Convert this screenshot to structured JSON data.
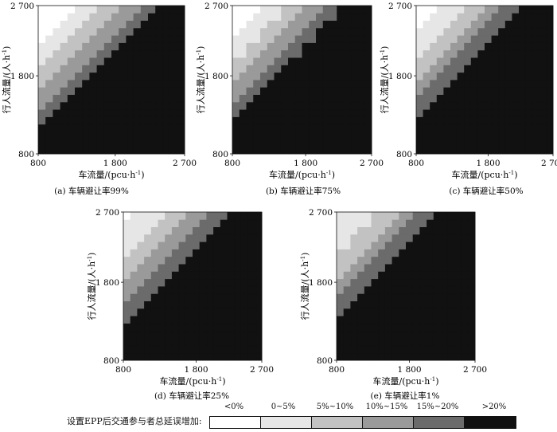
{
  "chart_data": [
    {
      "type": "heatmap",
      "caption": "(a) 车辆避让率99%",
      "xlabel": "车流量/(pcu·h",
      "xlabel_sup": "-1",
      "xlabel_tail": ")",
      "ylabel": "行人流量/(人·h",
      "ylabel_sup": "-1",
      "ylabel_tail": ")",
      "x_range": [
        800,
        2700
      ],
      "y_range": [
        800,
        2700
      ],
      "xticks": [
        800,
        1800,
        2700
      ],
      "xtick_labels": [
        "800",
        "1 800",
        "2 700"
      ],
      "yticks": [
        800,
        1800,
        2700
      ],
      "ytick_labels": [
        "800",
        "1 800",
        "2 700"
      ],
      "grid_size": [
        20,
        20
      ],
      "boundaries": [
        0.72,
        0.56,
        0.42,
        0.29,
        0.17
      ]
    },
    {
      "type": "heatmap",
      "caption": "(b) 车辆避让率75%",
      "xlabel": "车流量/(pcu·h",
      "xlabel_sup": "-1",
      "xlabel_tail": ")",
      "ylabel": "行人流量/(人·h",
      "ylabel_sup": "-1",
      "ylabel_tail": ")",
      "x_range": [
        800,
        2700
      ],
      "y_range": [
        800,
        2700
      ],
      "xticks": [
        800,
        1800,
        2700
      ],
      "xtick_labels": [
        "800",
        "1 800",
        "2 700"
      ],
      "yticks": [
        800,
        1800,
        2700
      ],
      "ytick_labels": [
        "800",
        "1 800",
        "2 700"
      ],
      "grid_size": [
        20,
        20
      ],
      "boundaries": [
        0.78,
        0.6,
        0.46,
        0.33,
        0.2
      ]
    },
    {
      "type": "heatmap",
      "caption": "(c) 车辆避让率50%",
      "xlabel": "车流量/(pcu·h",
      "xlabel_sup": "-1",
      "xlabel_tail": ")",
      "ylabel": "行人流量/(人·h",
      "ylabel_sup": "-1",
      "ylabel_tail": ")",
      "x_range": [
        800,
        2700
      ],
      "y_range": [
        800,
        2700
      ],
      "xticks": [
        800,
        1800,
        2700
      ],
      "xtick_labels": [
        "800",
        "1 800",
        "2 700"
      ],
      "yticks": [
        800,
        1800,
        2700
      ],
      "ytick_labels": [
        "800",
        "1 800",
        "2 700"
      ],
      "grid_size": [
        20,
        20
      ],
      "boundaries": [
        0.84,
        0.64,
        0.49,
        0.36,
        0.22
      ]
    },
    {
      "type": "heatmap",
      "caption": "(d) 车辆避让率25%",
      "xlabel": "车流量/(pcu·h",
      "xlabel_sup": "-1",
      "xlabel_tail": ")",
      "ylabel": "行人流量/(人·h",
      "ylabel_sup": "-1",
      "ylabel_tail": ")",
      "x_range": [
        800,
        2700
      ],
      "y_range": [
        800,
        2700
      ],
      "xticks": [
        800,
        1800,
        2700
      ],
      "xtick_labels": [
        "800",
        "1 800",
        "2 700"
      ],
      "yticks": [
        800,
        1800,
        2700
      ],
      "ytick_labels": [
        "800",
        "1 800",
        "2 700"
      ],
      "grid_size": [
        20,
        20
      ],
      "boundaries": [
        0.92,
        0.66,
        0.5,
        0.36,
        0.24
      ]
    },
    {
      "type": "heatmap",
      "caption": "(e) 车辆避让率1%",
      "xlabel": "车流量/(pcu·h",
      "xlabel_sup": "-1",
      "xlabel_tail": ")",
      "ylabel": "行人流量/(人·h",
      "ylabel_sup": "-1",
      "ylabel_tail": ")",
      "x_range": [
        800,
        2700
      ],
      "y_range": [
        800,
        2700
      ],
      "xticks": [
        800,
        1800,
        2700
      ],
      "xtick_labels": [
        "800",
        "1 800",
        "2 700"
      ],
      "yticks": [
        800,
        1800,
        2700
      ],
      "ytick_labels": [
        "800",
        "1 800",
        "2 700"
      ],
      "grid_size": [
        20,
        20
      ],
      "boundaries": [
        0.98,
        0.7,
        0.54,
        0.4,
        0.27
      ]
    }
  ],
  "legend": {
    "title": "设置EPP后交通参与者总延误增加:",
    "items": [
      {
        "label": "<0%",
        "color": "#ffffff"
      },
      {
        "label": "0~5%",
        "color": "#e6e6e6"
      },
      {
        "label": "5%~10%",
        "color": "#c2c2c2"
      },
      {
        "label": "10%~15%",
        "color": "#9a9a9a"
      },
      {
        "label": "15%~20%",
        "color": "#6b6b6b"
      },
      {
        "label": ">20%",
        "color": "#111111"
      }
    ]
  }
}
